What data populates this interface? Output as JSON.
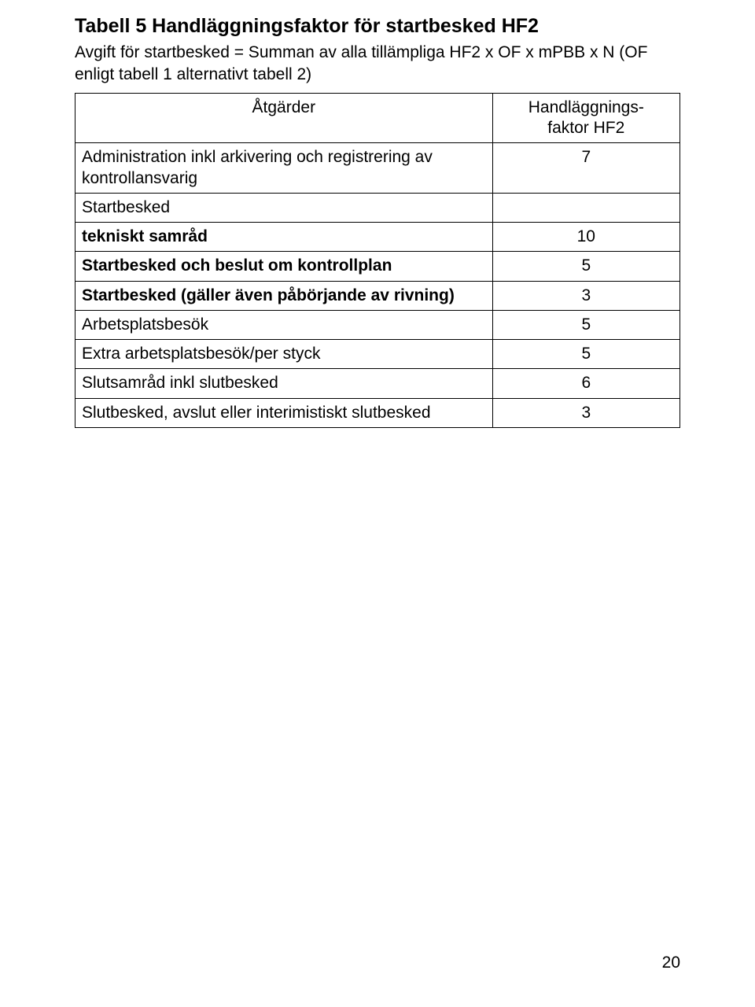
{
  "heading": "Tabell 5 Handläggningsfaktor för startbesked HF2",
  "subtitle": "Avgift för startbesked = Summan av alla tillämpliga HF2 x OF x mPBB x N (OF enligt tabell 1 alternativt tabell 2)",
  "table": {
    "header": {
      "actions": "Åtgärder",
      "factor_line1": "Handläggnings-",
      "factor_line2": "faktor HF2"
    },
    "rows": [
      {
        "label": "Administration inkl arkivering och registrering av kontrollansvarig",
        "value": "7",
        "bold": false
      },
      {
        "label": "Startbesked",
        "value": "",
        "bold": false
      },
      {
        "label": "tekniskt samråd",
        "value": "10",
        "bold": true
      },
      {
        "label": "Startbesked och beslut om kontrollplan",
        "value": "5",
        "bold": true
      },
      {
        "label": "Startbesked (gäller även påbörjande av rivning)",
        "value": "3",
        "bold": true
      },
      {
        "label": "Arbetsplatsbesök",
        "value": "5",
        "bold": false
      },
      {
        "label": "Extra arbetsplatsbesök/per styck",
        "value": "5",
        "bold": false
      },
      {
        "label": "Slutsamråd inkl slutbesked",
        "value": "6",
        "bold": false
      },
      {
        "label": "Slutbesked, avslut eller interimistiskt slutbesked",
        "value": "3",
        "bold": false
      }
    ]
  },
  "page_number": "20"
}
